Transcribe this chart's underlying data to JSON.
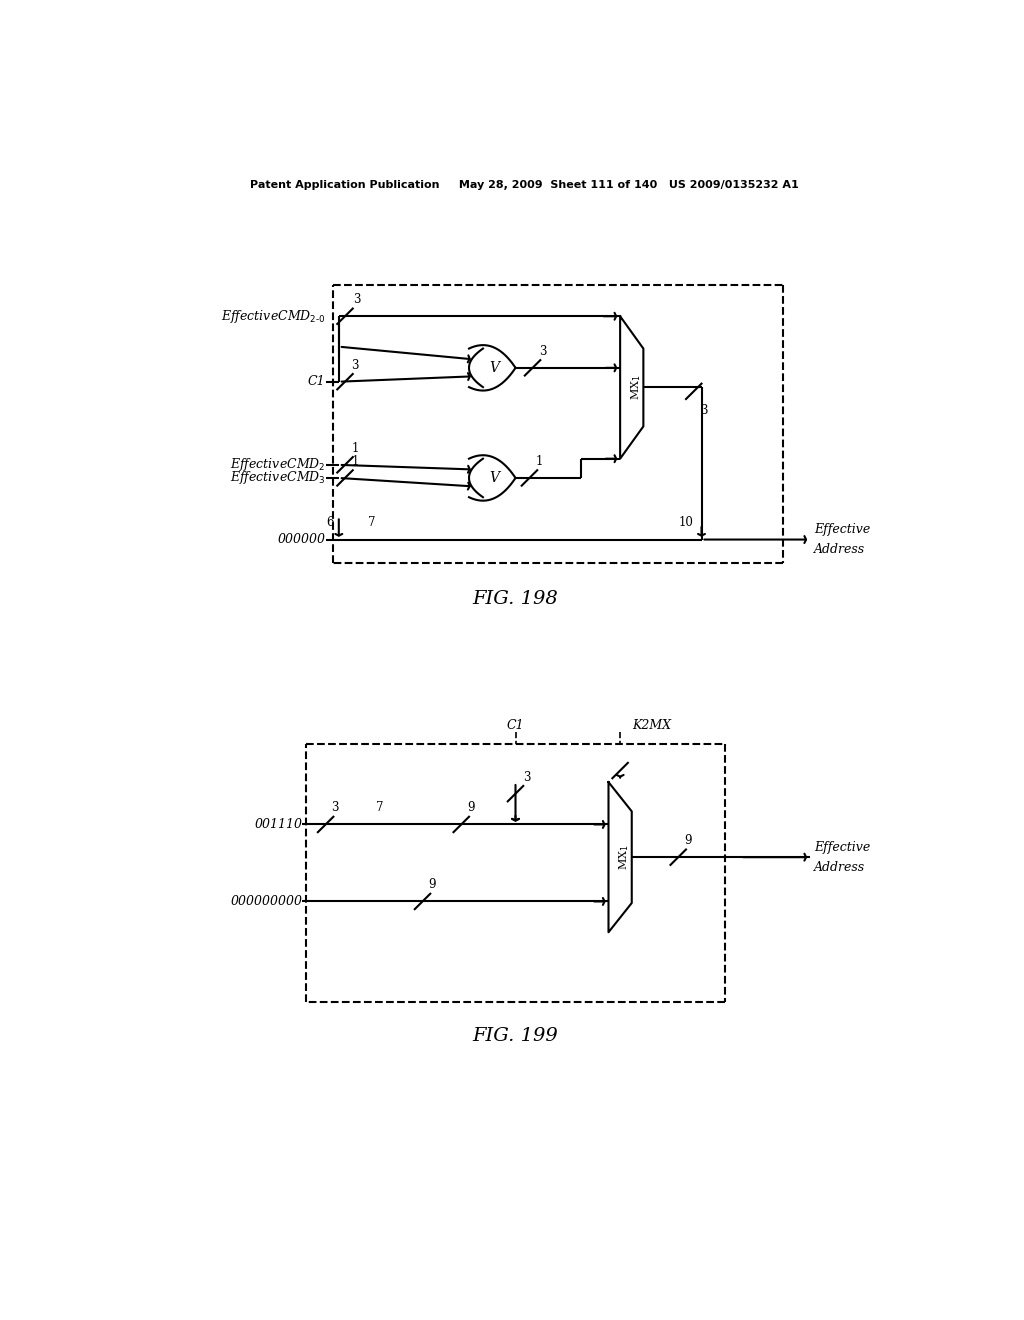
{
  "fig_width": 10.24,
  "fig_height": 13.2,
  "bg_color": "#ffffff",
  "header_text": "Patent Application Publication     May 28, 2009  Sheet 111 of 140   US 2009/0135232 A1",
  "fig198_label": "FIG. 198",
  "fig199_label": "FIG. 199"
}
